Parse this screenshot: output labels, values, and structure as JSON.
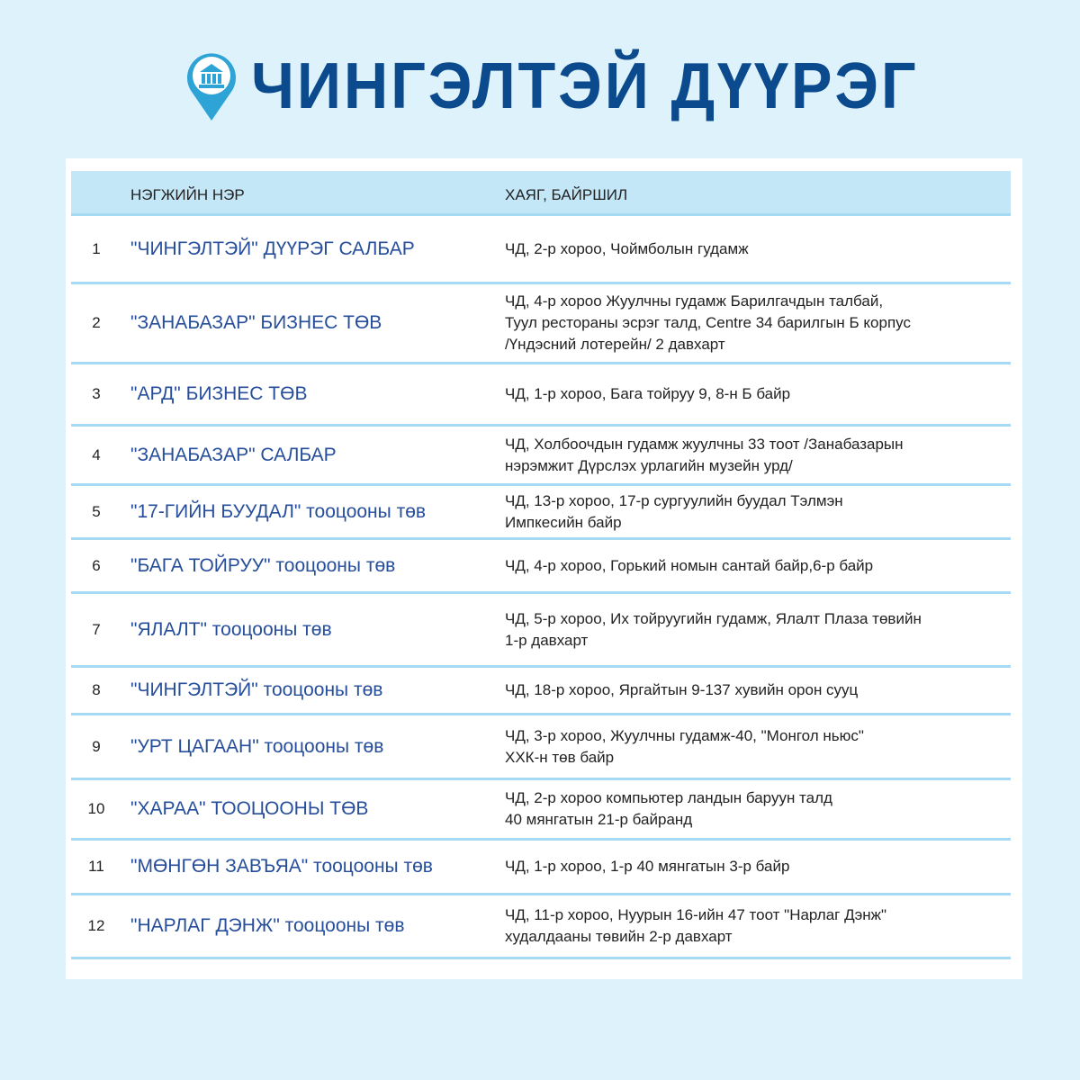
{
  "title": "ЧИНГЭЛТЭЙ ДҮҮРЭГ",
  "icon": "bank-location-pin-icon",
  "colors": {
    "background": "#ddf2fb",
    "header": "#c4e7f8",
    "divider": "#a6d9f3",
    "name": "#264e9b",
    "title": "#0c4a8e"
  },
  "table": {
    "headers": {
      "name": "НЭГЖИЙН НЭР",
      "address": "ХАЯГ, БАЙРШИЛ"
    },
    "rows": [
      {
        "num": "1",
        "name": "\"ЧИНГЭЛТЭЙ\" ДҮҮРЭГ САЛБАР",
        "address": "ЧД, 2-р хороо, Чоймболын гудамж"
      },
      {
        "num": "2",
        "name": "\"ЗАНАБАЗАР\" БИЗНЕС ТӨВ",
        "address": "ЧД, 4-р хороо Жуулчны гудамж Барилгачдын талбай,\nТуул рестораны эсрэг талд, Centre 34 барилгын Б корпус\n/Үндэсний лотерейн/ 2 давхарт"
      },
      {
        "num": "3",
        "name": "\"АРД\" БИЗНЕС ТӨВ",
        "address": "ЧД, 1-р хороо, Бага тойруу 9, 8-н Б байр"
      },
      {
        "num": "4",
        "name": "\"ЗАНАБАЗАР\" САЛБАР",
        "address": "ЧД, Холбоочдын гудамж жуулчны 33 тоот /Занабазарын\nнэрэмжит Дүрслэх урлагийн музейн урд/"
      },
      {
        "num": "5",
        "name": "\"17-ГИЙН БУУДАЛ\" тооцооны төв",
        "address": "ЧД, 13-р хороо, 17-р сургуулийн буудал Тэлмэн\nИмпкесийн байр"
      },
      {
        "num": "6",
        "name": "\"БАГА ТОЙРУУ\" тооцооны төв",
        "address": "ЧД, 4-р хороо, Горький номын сантай байр,6-р байр"
      },
      {
        "num": "7",
        "name": "\"ЯЛАЛТ\" тооцооны төв",
        "address": "ЧД, 5-р хороо, Их тойруугийн гудамж, Ялалт Плаза төвийн\n1-р давхарт"
      },
      {
        "num": "8",
        "name": "\"ЧИНГЭЛТЭЙ\" тооцооны төв",
        "address": "ЧД, 18-р хороо, Яргайтын 9-137 хувийн орон сууц"
      },
      {
        "num": "9",
        "name": "\"УРТ ЦАГААН\" тооцооны төв",
        "address": "ЧД, 3-р хороо, Жуулчны гудамж-40, \"Монгол ньюс\"\nХХК-н төв байр"
      },
      {
        "num": "10",
        "name": "\"ХАРАА\" ТООЦООНЫ ТӨВ",
        "address": "ЧД, 2-р хороо компьютер ландын баруун талд\n40 мянгатын 21-р байранд"
      },
      {
        "num": "11",
        "name": "\"МӨНГӨН ЗАВЪЯА\" тооцооны төв",
        "address": "ЧД, 1-р хороо, 1-р 40 мянгатын 3-р байр"
      },
      {
        "num": "12",
        "name": "\"НАРЛАГ ДЭНЖ\" тооцооны төв",
        "address": "ЧД, 11-р хороо, Нуурын 16-ийн 47 тоот \"Нарлаг Дэнж\"\nхудалдааны төвийн 2-р давхарт"
      }
    ]
  }
}
